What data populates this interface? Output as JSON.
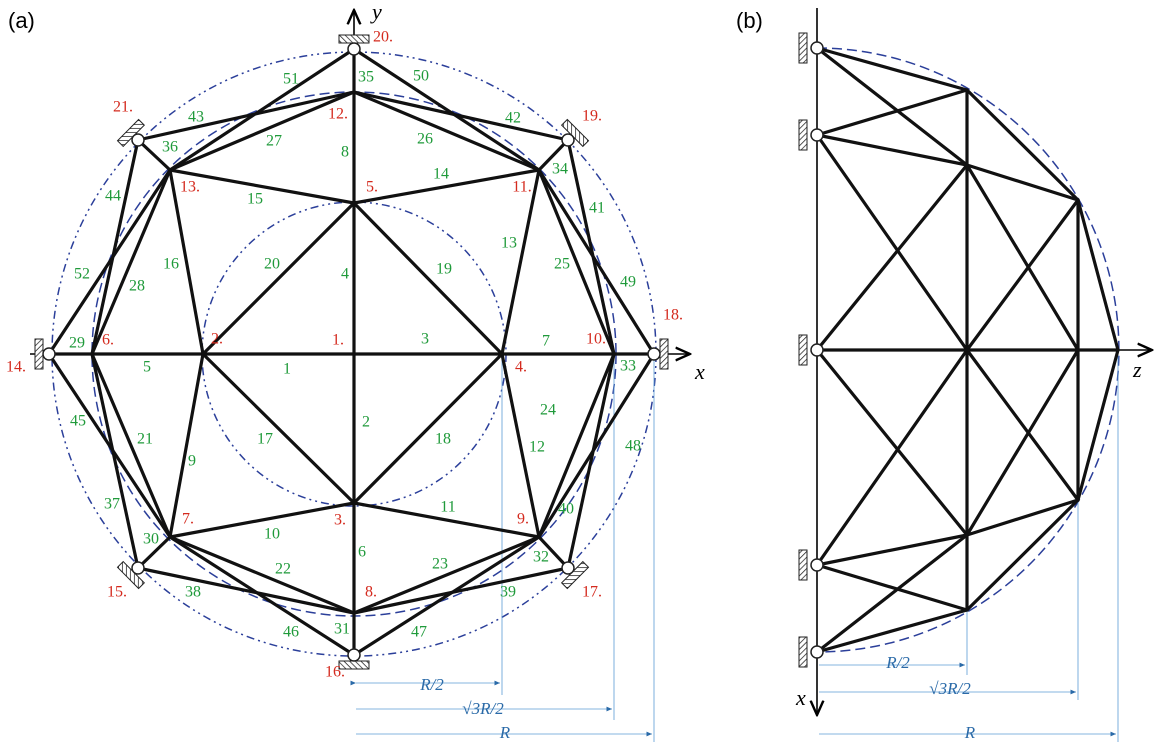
{
  "panels": [
    {
      "label": "(a)",
      "axes": {
        "x": "x",
        "y": "y"
      },
      "nodes": [
        "1.",
        "2.",
        "3.",
        "4.",
        "5.",
        "6.",
        "7.",
        "8.",
        "9.",
        "10.",
        "11.",
        "12.",
        "13.",
        "14.",
        "15.",
        "16.",
        "17.",
        "18.",
        "19.",
        "20.",
        "21."
      ],
      "members": [
        "1",
        "2",
        "3",
        "4",
        "5",
        "6",
        "7",
        "8",
        "9",
        "10",
        "11",
        "12",
        "13",
        "14",
        "15",
        "16",
        "17",
        "18",
        "19",
        "20",
        "21",
        "22",
        "23",
        "24",
        "25",
        "26",
        "27",
        "28",
        "29",
        "30",
        "31",
        "32",
        "33",
        "34",
        "35",
        "36",
        "37",
        "38",
        "39",
        "40",
        "41",
        "42",
        "43",
        "44",
        "45",
        "46",
        "47",
        "48",
        "49",
        "50",
        "51",
        "52"
      ],
      "dimensions": [
        "R/2",
        "√3R/2",
        "R"
      ]
    },
    {
      "label": "(b)",
      "axes": {
        "x": "x",
        "z": "z"
      },
      "dimensions": [
        "R/2",
        "√3R/2",
        "R"
      ]
    }
  ]
}
